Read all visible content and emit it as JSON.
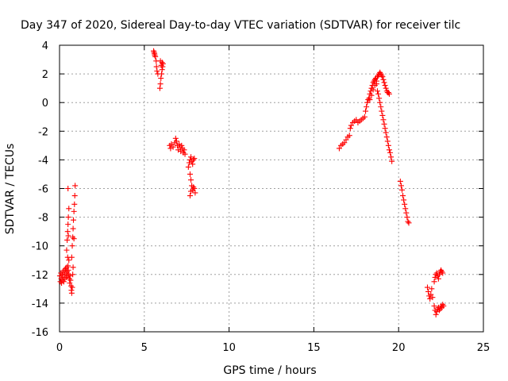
{
  "chart_data": {
    "type": "scatter",
    "title": "Day 347 of 2020, Sidereal Day-to-day VTEC variation (SDTVAR) for receiver tilc",
    "xlabel": "GPS time / hours",
    "ylabel": "SDTVAR / TECUs",
    "xlim": [
      0,
      25
    ],
    "ylim": [
      -16,
      4
    ],
    "xticks": [
      "0",
      "5",
      "10",
      "15",
      "20",
      "25"
    ],
    "yticks": [
      "4",
      "2",
      "0",
      "-2",
      "-4",
      "-6",
      "-8",
      "-10",
      "-12",
      "-14",
      "-16"
    ],
    "grid": true,
    "marker": "+",
    "color": "#ff0000",
    "series": [
      {
        "name": "SDTVAR",
        "points": [
          [
            0.02,
            -12.1
          ],
          [
            0.05,
            -12.5
          ],
          [
            0.08,
            -11.9
          ],
          [
            0.1,
            -12.3
          ],
          [
            0.12,
            -12.6
          ],
          [
            0.15,
            -12.0
          ],
          [
            0.18,
            -12.4
          ],
          [
            0.2,
            -11.8
          ],
          [
            0.22,
            -12.2
          ],
          [
            0.25,
            -12.5
          ],
          [
            0.28,
            -11.7
          ],
          [
            0.3,
            -12.0
          ],
          [
            0.32,
            -12.3
          ],
          [
            0.35,
            -11.6
          ],
          [
            0.38,
            -11.9
          ],
          [
            0.4,
            -12.2
          ],
          [
            0.42,
            -11.5
          ],
          [
            0.45,
            -11.8
          ],
          [
            0.48,
            -12.1
          ],
          [
            0.5,
            -11.4
          ],
          [
            0.52,
            -11.7
          ],
          [
            0.55,
            -12.0
          ],
          [
            0.58,
            -12.3
          ],
          [
            0.6,
            -12.6
          ],
          [
            0.62,
            -12.1
          ],
          [
            0.65,
            -12.4
          ],
          [
            0.68,
            -12.8
          ],
          [
            0.7,
            -13.1
          ],
          [
            0.72,
            -13.3
          ],
          [
            0.75,
            -12.9
          ],
          [
            0.42,
            -10.3
          ],
          [
            0.45,
            -9.6
          ],
          [
            0.48,
            -9.0
          ],
          [
            0.5,
            -8.5
          ],
          [
            0.52,
            -8.0
          ],
          [
            0.55,
            -7.4
          ],
          [
            0.5,
            -6.0
          ],
          [
            0.48,
            -10.8
          ],
          [
            0.52,
            -9.3
          ],
          [
            0.55,
            -11.0
          ],
          [
            0.72,
            -10.8
          ],
          [
            0.75,
            -10.0
          ],
          [
            0.78,
            -9.4
          ],
          [
            0.8,
            -8.8
          ],
          [
            0.82,
            -8.2
          ],
          [
            0.85,
            -7.6
          ],
          [
            0.88,
            -7.1
          ],
          [
            0.9,
            -6.5
          ],
          [
            0.92,
            -5.8
          ],
          [
            0.85,
            -9.5
          ],
          [
            0.8,
            -11.5
          ],
          [
            0.78,
            -12.0
          ],
          [
            5.55,
            3.6
          ],
          [
            5.6,
            3.4
          ],
          [
            5.65,
            3.2
          ],
          [
            5.7,
            2.9
          ],
          [
            5.72,
            2.5
          ],
          [
            5.75,
            2.2
          ],
          [
            5.8,
            2.0
          ],
          [
            5.58,
            3.5
          ],
          [
            5.62,
            3.3
          ],
          [
            5.95,
            2.9
          ],
          [
            6.0,
            2.6
          ],
          [
            6.05,
            2.3
          ],
          [
            6.02,
            2.0
          ],
          [
            5.98,
            1.7
          ],
          [
            5.95,
            1.3
          ],
          [
            5.92,
            1.0
          ],
          [
            6.05,
            2.8
          ],
          [
            6.08,
            2.5
          ],
          [
            6.1,
            2.7
          ],
          [
            6.5,
            -3.0
          ],
          [
            6.55,
            -3.2
          ],
          [
            6.6,
            -2.9
          ],
          [
            6.7,
            -3.1
          ],
          [
            6.8,
            -2.8
          ],
          [
            6.85,
            -2.5
          ],
          [
            6.9,
            -2.7
          ],
          [
            6.95,
            -3.0
          ],
          [
            7.0,
            -3.3
          ],
          [
            7.05,
            -2.9
          ],
          [
            7.1,
            -3.1
          ],
          [
            7.15,
            -3.4
          ],
          [
            7.2,
            -3.0
          ],
          [
            7.25,
            -3.2
          ],
          [
            7.3,
            -3.5
          ],
          [
            7.35,
            -3.3
          ],
          [
            7.4,
            -3.6
          ],
          [
            7.6,
            -4.5
          ],
          [
            7.65,
            -4.2
          ],
          [
            7.7,
            -4.0
          ],
          [
            7.75,
            -3.8
          ],
          [
            7.8,
            -4.1
          ],
          [
            7.85,
            -4.3
          ],
          [
            7.9,
            -4.0
          ],
          [
            7.95,
            -3.9
          ],
          [
            7.7,
            -5.0
          ],
          [
            7.75,
            -5.4
          ],
          [
            7.8,
            -5.8
          ],
          [
            7.75,
            -6.2
          ],
          [
            7.7,
            -6.5
          ],
          [
            7.85,
            -6.1
          ],
          [
            7.9,
            -5.9
          ],
          [
            7.95,
            -6.0
          ],
          [
            8.0,
            -6.3
          ],
          [
            16.5,
            -3.2
          ],
          [
            16.6,
            -3.0
          ],
          [
            16.7,
            -2.9
          ],
          [
            16.8,
            -2.8
          ],
          [
            16.9,
            -2.6
          ],
          [
            17.0,
            -2.4
          ],
          [
            17.1,
            -2.3
          ],
          [
            17.15,
            -1.8
          ],
          [
            17.2,
            -1.6
          ],
          [
            17.3,
            -1.4
          ],
          [
            17.4,
            -1.3
          ],
          [
            17.5,
            -1.2
          ],
          [
            17.6,
            -1.4
          ],
          [
            17.7,
            -1.3
          ],
          [
            17.8,
            -1.2
          ],
          [
            17.9,
            -1.1
          ],
          [
            18.0,
            -1.0
          ],
          [
            18.05,
            -0.6
          ],
          [
            18.1,
            -0.3
          ],
          [
            18.15,
            0.0
          ],
          [
            18.2,
            0.2
          ],
          [
            18.25,
            0.3
          ],
          [
            18.3,
            0.6
          ],
          [
            18.35,
            0.8
          ],
          [
            18.4,
            1.0
          ],
          [
            18.45,
            1.2
          ],
          [
            18.5,
            1.4
          ],
          [
            18.55,
            1.5
          ],
          [
            18.6,
            1.6
          ],
          [
            18.65,
            1.7
          ],
          [
            18.7,
            1.5
          ],
          [
            18.75,
            1.8
          ],
          [
            18.8,
            1.9
          ],
          [
            18.85,
            2.0
          ],
          [
            18.9,
            2.1
          ],
          [
            18.95,
            2.0
          ],
          [
            19.0,
            1.9
          ],
          [
            19.05,
            1.8
          ],
          [
            19.1,
            1.6
          ],
          [
            19.15,
            1.4
          ],
          [
            19.2,
            1.2
          ],
          [
            19.25,
            1.0
          ],
          [
            19.3,
            0.8
          ],
          [
            19.35,
            0.7
          ],
          [
            19.4,
            0.7
          ],
          [
            19.45,
            0.6
          ],
          [
            18.3,
            0.2
          ],
          [
            18.4,
            0.5
          ],
          [
            18.5,
            0.9
          ],
          [
            18.6,
            1.2
          ],
          [
            18.7,
            1.3
          ],
          [
            18.75,
            0.8
          ],
          [
            18.8,
            0.6
          ],
          [
            18.85,
            0.3
          ],
          [
            18.9,
            0.0
          ],
          [
            18.95,
            -0.3
          ],
          [
            19.0,
            -0.6
          ],
          [
            19.05,
            -0.9
          ],
          [
            19.1,
            -1.2
          ],
          [
            19.15,
            -1.5
          ],
          [
            19.2,
            -1.8
          ],
          [
            19.25,
            -2.1
          ],
          [
            19.3,
            -2.4
          ],
          [
            19.35,
            -2.7
          ],
          [
            19.4,
            -3.0
          ],
          [
            19.45,
            -3.3
          ],
          [
            19.5,
            -3.5
          ],
          [
            19.55,
            -3.8
          ],
          [
            19.6,
            -4.1
          ],
          [
            20.1,
            -5.5
          ],
          [
            20.15,
            -5.8
          ],
          [
            20.2,
            -6.1
          ],
          [
            20.25,
            -6.5
          ],
          [
            20.3,
            -6.8
          ],
          [
            20.35,
            -7.1
          ],
          [
            20.4,
            -7.4
          ],
          [
            20.45,
            -7.7
          ],
          [
            20.5,
            -8.0
          ],
          [
            20.55,
            -8.3
          ],
          [
            20.6,
            -8.4
          ],
          [
            21.7,
            -12.9
          ],
          [
            21.75,
            -13.2
          ],
          [
            21.8,
            -13.5
          ],
          [
            21.85,
            -13.7
          ],
          [
            21.9,
            -13.4
          ],
          [
            21.95,
            -13.0
          ],
          [
            22.0,
            -13.6
          ],
          [
            22.1,
            -14.2
          ],
          [
            22.15,
            -14.5
          ],
          [
            22.2,
            -14.8
          ],
          [
            22.25,
            -14.6
          ],
          [
            22.3,
            -14.4
          ],
          [
            22.35,
            -14.3
          ],
          [
            22.4,
            -14.5
          ],
          [
            22.45,
            -14.4
          ],
          [
            22.5,
            -14.2
          ],
          [
            22.55,
            -14.3
          ],
          [
            22.6,
            -14.1
          ],
          [
            22.65,
            -14.2
          ],
          [
            22.1,
            -12.5
          ],
          [
            22.15,
            -12.2
          ],
          [
            22.2,
            -12.0
          ],
          [
            22.25,
            -11.9
          ],
          [
            22.3,
            -12.1
          ],
          [
            22.35,
            -12.3
          ],
          [
            22.4,
            -12.0
          ],
          [
            22.45,
            -11.8
          ],
          [
            22.5,
            -11.7
          ],
          [
            22.55,
            -11.8
          ],
          [
            22.6,
            -11.9
          ]
        ]
      }
    ]
  }
}
